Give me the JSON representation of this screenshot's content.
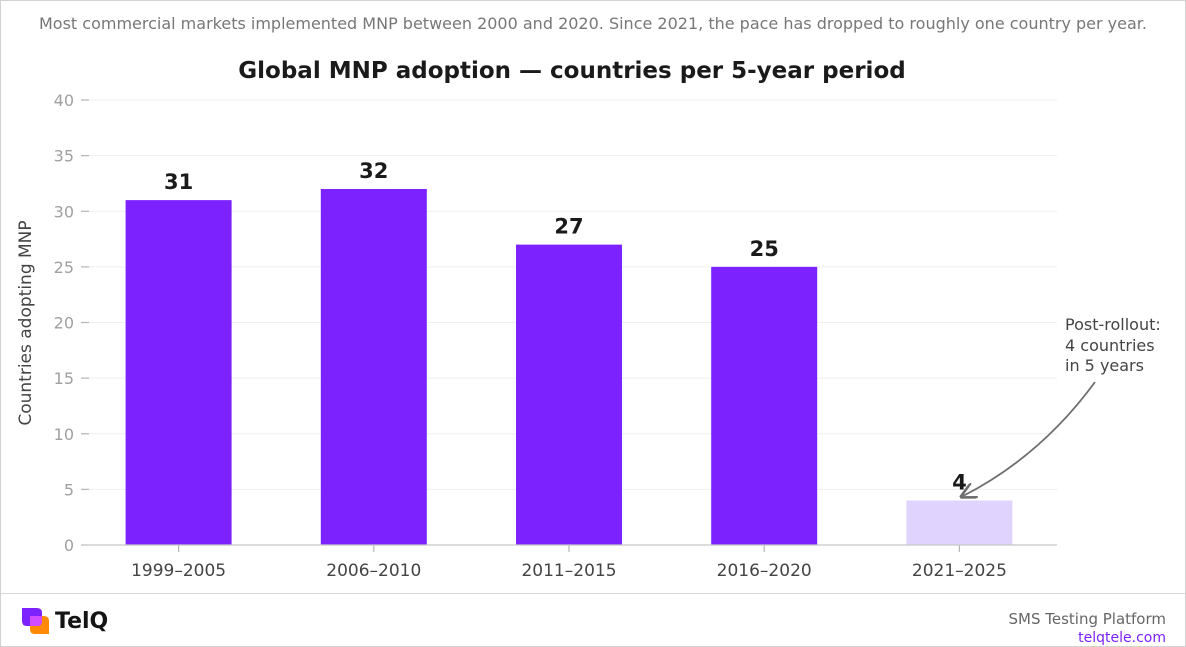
{
  "subtitle": "Most commercial markets implemented MNP between 2000 and 2020. Since 2021, the pace has dropped to roughly one country per year.",
  "chart_data": {
    "type": "bar",
    "title": "Global MNP adoption — countries per 5-year period",
    "xlabel": "",
    "ylabel": "Countries adopting MNP",
    "categories": [
      "1999–2005",
      "2006–2010",
      "2011–2015",
      "2016–2020",
      "2021–2025"
    ],
    "values": [
      31,
      32,
      27,
      25,
      4
    ],
    "data_labels": [
      "31",
      "32",
      "27",
      "25",
      "4"
    ],
    "ylim": [
      0,
      40
    ],
    "yticks": [
      0,
      5,
      10,
      15,
      20,
      25,
      30,
      35,
      40
    ],
    "grid": true,
    "colors": {
      "main": "#7b22ff",
      "highlight": "#e0d4fe"
    },
    "annotation": {
      "lines": [
        "Post-rollout:",
        "4 countries",
        "in 5 years"
      ],
      "target_category": "2021–2025"
    }
  },
  "footer": {
    "brand": "TelQ",
    "platform": "SMS Testing Platform",
    "site": "telqtele.com"
  }
}
